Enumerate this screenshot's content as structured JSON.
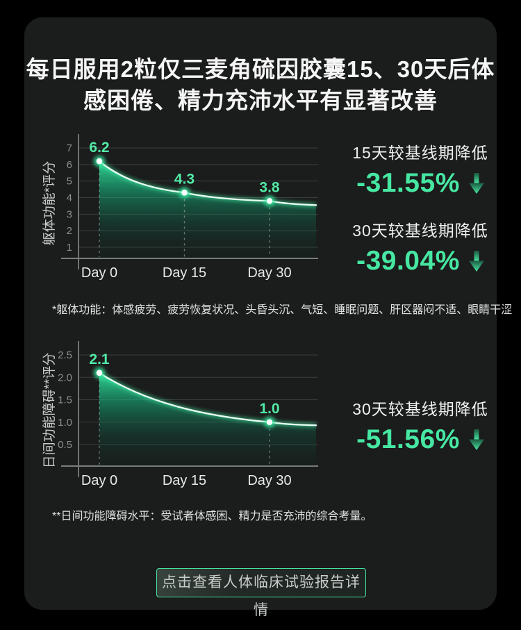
{
  "title": {
    "line1": "每日服用2粒仅三麦角硫因胶囊15、30天后体",
    "line2": "感困倦、精力充沛水平有显著改善"
  },
  "colors": {
    "page_bg": "#000000",
    "card_bg": "#1b1c1c",
    "accent_mint": "#46e7a2",
    "curve_light": "#eafff5",
    "grid_line": "#3b403f",
    "tick_text": "#8b908e"
  },
  "chart_data": [
    {
      "type": "area",
      "ylabel": "躯体功能*评分",
      "categories": [
        "Day 0",
        "Day 15",
        "Day 30"
      ],
      "values": [
        6.2,
        4.3,
        3.8
      ],
      "value_labels": [
        "6.2",
        "4.3",
        "3.8"
      ],
      "yticks": [
        7,
        6,
        5,
        4,
        3,
        2,
        1
      ],
      "ytick_labels": [
        "7",
        "6",
        "5",
        "4",
        "3",
        "2",
        "1"
      ],
      "ylim": [
        0.2,
        7.6
      ],
      "curve_end_value": 3.55,
      "grid": true,
      "legend": "none",
      "stats": [
        {
          "label": "15天较基线期降低",
          "value": "-31.55%",
          "direction": "down"
        },
        {
          "label": "30天较基线期降低",
          "value": "-39.04%",
          "direction": "down"
        }
      ]
    },
    {
      "type": "area",
      "ylabel": "日间功能障碍**评分",
      "categories": [
        "Day 0",
        "Day 15",
        "Day 30"
      ],
      "values": [
        2.1,
        null,
        1.0
      ],
      "value_labels": [
        "2.1",
        null,
        "1.0"
      ],
      "yticks": [
        2.5,
        2.0,
        1.5,
        1.0,
        0.5
      ],
      "ytick_labels": [
        "2.5",
        "2.0",
        "1.5",
        "1.0",
        "0.5"
      ],
      "ylim": [
        0,
        2.7
      ],
      "curve_end_value": 0.93,
      "grid": true,
      "legend": "none",
      "stats": [
        {
          "label": "30天较基线期降低",
          "value": "-51.56%",
          "direction": "down"
        }
      ]
    }
  ],
  "footnotes": [
    "*躯体功能：体感疲劳、疲劳恢复状况、头昏头沉、气短、睡眠问题、肝区器闷不适、眼睛干涩",
    "**日间功能障碍水平：受试者体感困、精力是否充沛的综合考量。"
  ],
  "button": {
    "label": "点击查看人体临床试验报告详情"
  }
}
